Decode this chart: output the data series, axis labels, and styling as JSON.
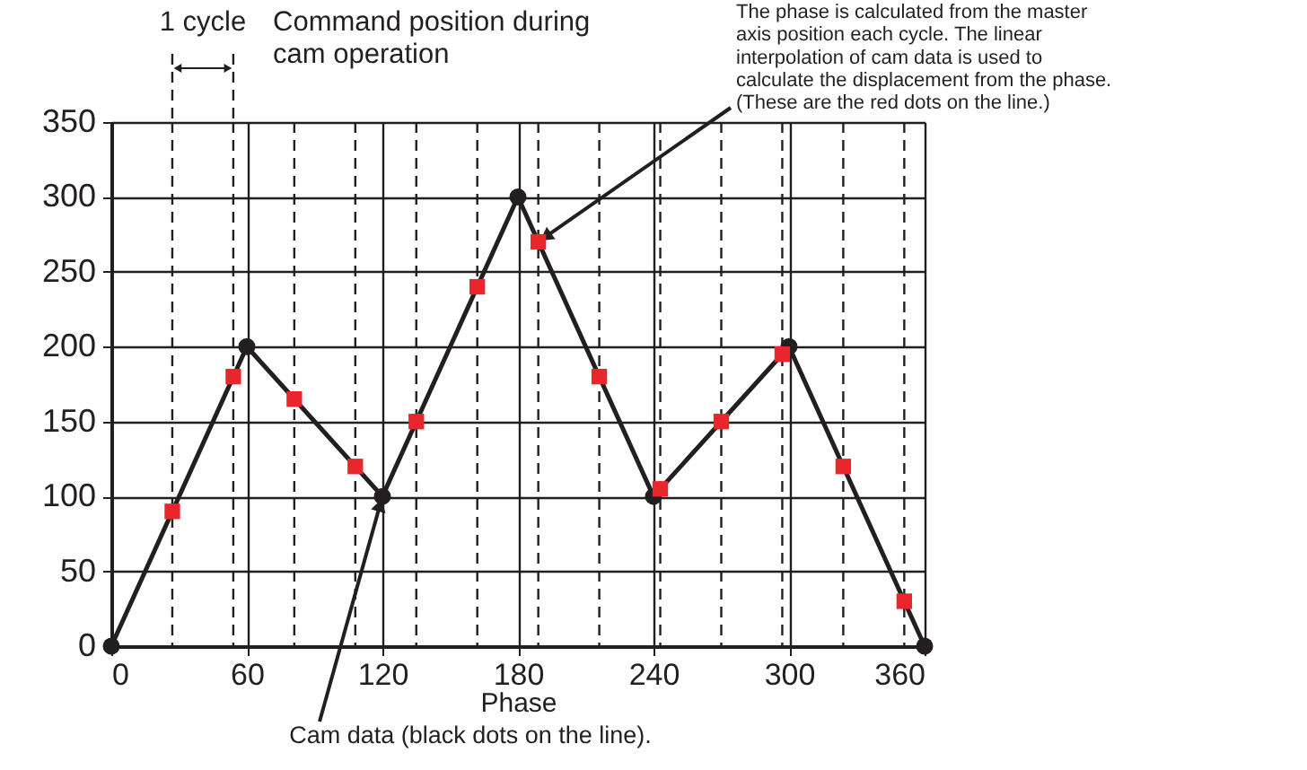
{
  "chart_data": {
    "type": "line",
    "title": "Command position during cam operation",
    "xlabel": "Phase",
    "series": [
      {
        "color": "#231f20",
        "marker": "circle",
        "x": [
          0,
          60,
          120,
          180,
          240,
          300,
          360
        ],
        "values": [
          0,
          200,
          100,
          300,
          100,
          200,
          0
        ]
      },
      {
        "type": "scatter",
        "color": "#e8262c",
        "marker": "square",
        "x": [
          27,
          54,
          81,
          108,
          135,
          162,
          189,
          216,
          243,
          270,
          297,
          324,
          351
        ],
        "values": [
          90,
          180,
          165,
          120,
          150,
          240,
          270,
          180,
          105,
          150,
          195,
          120,
          30
        ]
      }
    ],
    "xlim": [
      0,
      360
    ],
    "xticks": [
      0,
      60,
      120,
      180,
      240,
      300,
      360
    ],
    "ylim": [
      0,
      350
    ],
    "yticks": [
      0,
      50,
      100,
      150,
      200,
      250,
      300,
      350
    ],
    "grid": true,
    "line_style": "solid",
    "ref_lines": [
      {
        "axis": "x",
        "value": 27,
        "line_style": "dashed"
      },
      {
        "axis": "x",
        "value": 54,
        "line_style": "dashed"
      },
      {
        "axis": "x",
        "value": 81,
        "line_style": "dashed"
      },
      {
        "axis": "x",
        "value": 108,
        "line_style": "dashed"
      },
      {
        "axis": "x",
        "value": 135,
        "line_style": "dashed"
      },
      {
        "axis": "x",
        "value": 162,
        "line_style": "dashed"
      },
      {
        "axis": "x",
        "value": 189,
        "line_style": "dashed"
      },
      {
        "axis": "x",
        "value": 216,
        "line_style": "dashed"
      },
      {
        "axis": "x",
        "value": 243,
        "line_style": "dashed"
      },
      {
        "axis": "x",
        "value": 270,
        "line_style": "dashed"
      },
      {
        "axis": "x",
        "value": 297,
        "line_style": "dashed"
      },
      {
        "axis": "x",
        "value": 324,
        "line_style": "dashed"
      },
      {
        "axis": "x",
        "value": 351,
        "line_style": "dashed"
      }
    ],
    "annotations": [
      "1 cycle",
      {
        "text": "The phase is calculated from the master axis position each cycle. The linear interpolation of cam data is used to calculate the displacement from the phase. (These are the red dots on the line.)",
        "x": 189,
        "y": 270
      },
      {
        "text": "Cam data (black dots on the line).",
        "x": 120,
        "y": 100
      }
    ]
  }
}
